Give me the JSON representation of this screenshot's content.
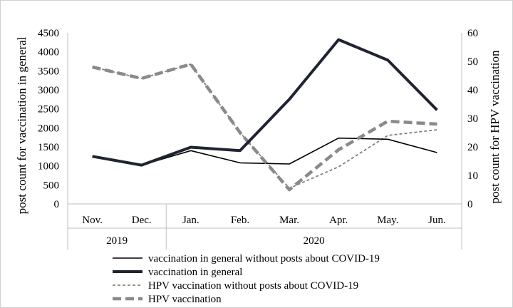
{
  "chart_data": {
    "type": "line",
    "categories": [
      "Nov.",
      "Dec.",
      "Jan.",
      "Feb.",
      "Mar.",
      "Apr.",
      "May.",
      "Jun."
    ],
    "year_groups": [
      {
        "label": "2019",
        "start": 0,
        "end": 1
      },
      {
        "label": "2020",
        "start": 2,
        "end": 7
      }
    ],
    "y_left": {
      "label": "post count for vaccination in general",
      "ylim": [
        0,
        4500
      ],
      "ticks": [
        0,
        500,
        1000,
        1500,
        2000,
        2500,
        3000,
        3500,
        4000,
        4500
      ],
      "tick_labels": [
        "0",
        "500",
        "1000",
        "1500",
        "2000",
        "2500",
        "3000",
        "3500",
        "4000",
        "4500"
      ]
    },
    "y_right": {
      "label": "post count for HPV vaccination",
      "ylim": [
        0,
        60
      ],
      "ticks": [
        0,
        10,
        20,
        30,
        40,
        50,
        60
      ],
      "tick_labels": [
        "0",
        "10",
        "20",
        "30",
        "40",
        "50",
        "60"
      ]
    },
    "series": [
      {
        "name": "vaccination in general without posts about COVID-19",
        "axis": "left",
        "style": "thin-solid",
        "color": "#000000",
        "values": [
          1250,
          1020,
          1400,
          1080,
          1050,
          1730,
          1700,
          1350
        ]
      },
      {
        "name": "vaccination in general",
        "axis": "left",
        "style": "thick-solid",
        "color": "#1f2430",
        "values": [
          1250,
          1020,
          1490,
          1400,
          2750,
          4320,
          3780,
          2470
        ]
      },
      {
        "name": "HPV vaccination without posts about COVID-19",
        "axis": "right",
        "style": "thin-dashed",
        "color": "#808080",
        "values": [
          48,
          44,
          49,
          25,
          5.5,
          13,
          24,
          26
        ]
      },
      {
        "name": "HPV vaccination",
        "axis": "right",
        "style": "thick-dashed",
        "color": "#8a8a8a",
        "values": [
          48,
          44,
          49,
          25,
          5,
          19,
          29,
          28
        ]
      }
    ],
    "grid": false,
    "legend_position": "bottom"
  }
}
